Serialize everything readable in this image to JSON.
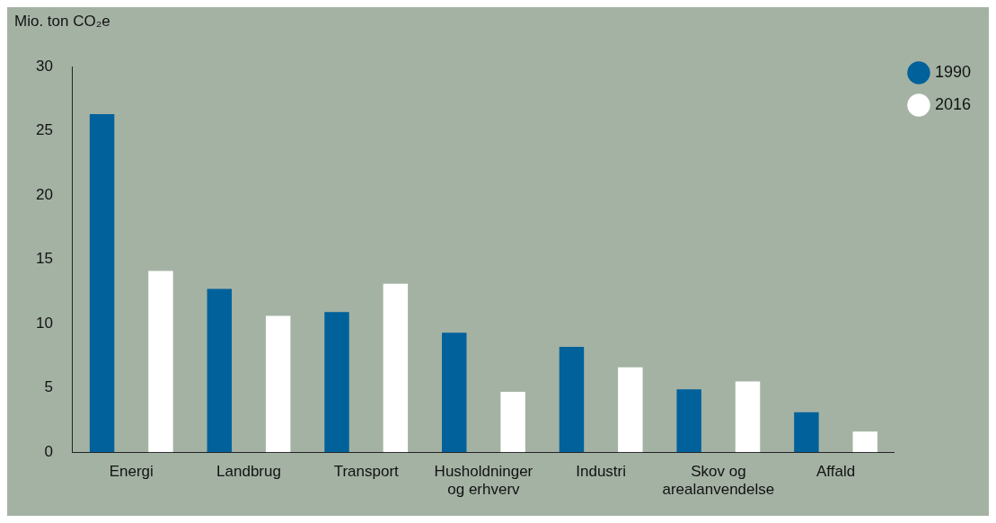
{
  "chart_data": {
    "type": "bar",
    "ylabel": "Mio. ton CO₂e",
    "categories": [
      "Energi",
      "Landbrug",
      "Transport",
      "Husholdninger og erhverv",
      "Industri",
      "Skov og arealanvendelse",
      "Affald"
    ],
    "series": [
      {
        "name": "1990",
        "color": "#00619b",
        "values": [
          26.3,
          12.7,
          10.9,
          9.3,
          8.2,
          4.9,
          3.1
        ]
      },
      {
        "name": "2016",
        "color": "#ffffff",
        "values": [
          14.1,
          10.6,
          13.1,
          4.7,
          6.6,
          5.5,
          1.6
        ]
      }
    ],
    "ylim": [
      0,
      30
    ],
    "yticks": [
      0,
      5,
      10,
      15,
      20,
      25,
      30
    ],
    "grid": false,
    "legend": "top right"
  }
}
